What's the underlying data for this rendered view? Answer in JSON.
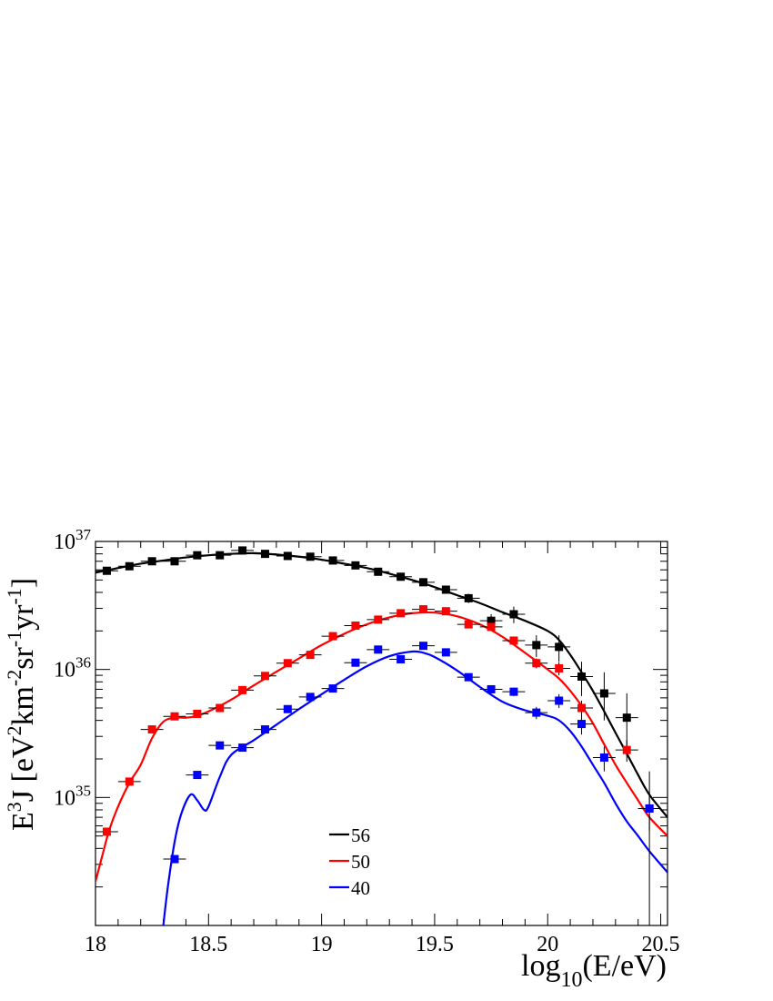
{
  "chart_data": {
    "type": "scatter",
    "title": "",
    "xlabel": {
      "base": "log",
      "sub": "10",
      "rest": "(E/eV)"
    },
    "ylabel": {
      "p1": "E",
      "s1": "3",
      "p2": "J [eV",
      "s2": "2",
      "p3": "km",
      "s3": "-2",
      "p4": "sr",
      "s4": "-1",
      "p5": "yr",
      "s5": "-1",
      "p6": "]"
    },
    "xlim": [
      18.0,
      20.53
    ],
    "ylim": [
      1e+34,
      1e+37
    ],
    "yscale": "log",
    "xticks": [
      {
        "value": 18.0,
        "label": "18"
      },
      {
        "value": 18.5,
        "label": "18.5"
      },
      {
        "value": 19.0,
        "label": "19"
      },
      {
        "value": 19.5,
        "label": "19.5"
      },
      {
        "value": 20.0,
        "label": "20"
      },
      {
        "value": 20.5,
        "label": "20.5"
      }
    ],
    "yticks": [
      {
        "value": 1e+35,
        "base": "10",
        "exp": "35"
      },
      {
        "value": 1e+36,
        "base": "10",
        "exp": "36"
      },
      {
        "value": 1e+37,
        "base": "10",
        "exp": "37"
      }
    ],
    "grid": false,
    "legend": {
      "position": "bottom-center",
      "entries": [
        "56",
        "50",
        "40"
      ]
    },
    "series": [
      {
        "name": "56",
        "color": "#000000",
        "points": [
          {
            "x": 18.05,
            "y": 5.9e+36,
            "elo": 5.6e+36,
            "ehi": 6.2e+36
          },
          {
            "x": 18.15,
            "y": 6.4e+36,
            "elo": 6.1e+36,
            "ehi": 6.7e+36
          },
          {
            "x": 18.25,
            "y": 7e+36,
            "elo": 6.7e+36,
            "ehi": 7.3e+36
          },
          {
            "x": 18.35,
            "y": 7e+36,
            "elo": 6.7e+36,
            "ehi": 7.3e+36
          },
          {
            "x": 18.45,
            "y": 7.8e+36,
            "elo": 7.5e+36,
            "ehi": 8.1e+36
          },
          {
            "x": 18.55,
            "y": 7.8e+36,
            "elo": 7.5e+36,
            "ehi": 8.1e+36
          },
          {
            "x": 18.65,
            "y": 8.5e+36,
            "elo": 8.2e+36,
            "ehi": 8.8e+36
          },
          {
            "x": 18.75,
            "y": 8e+36,
            "elo": 7.7e+36,
            "ehi": 8.3e+36
          },
          {
            "x": 18.85,
            "y": 7.7e+36,
            "elo": 7.4e+36,
            "ehi": 8e+36
          },
          {
            "x": 18.95,
            "y": 7.6e+36,
            "elo": 7.3e+36,
            "ehi": 7.9e+36
          },
          {
            "x": 19.05,
            "y": 7.1e+36,
            "elo": 6.8e+36,
            "ehi": 7.4e+36
          },
          {
            "x": 19.15,
            "y": 6.5e+36,
            "elo": 6.2e+36,
            "ehi": 6.8e+36
          },
          {
            "x": 19.25,
            "y": 5.8e+36,
            "elo": 5.5e+36,
            "ehi": 6.1e+36
          },
          {
            "x": 19.35,
            "y": 5.3e+36,
            "elo": 5e+36,
            "ehi": 5.6e+36
          },
          {
            "x": 19.45,
            "y": 4.8e+36,
            "elo": 4.5e+36,
            "ehi": 5.1e+36
          },
          {
            "x": 19.55,
            "y": 4.2e+36,
            "elo": 3.9e+36,
            "ehi": 4.5e+36
          },
          {
            "x": 19.65,
            "y": 3.6e+36,
            "elo": 3.3e+36,
            "ehi": 3.9e+36
          },
          {
            "x": 19.75,
            "y": 2.4e+36,
            "elo": 2.1e+36,
            "ehi": 2.7e+36
          },
          {
            "x": 19.85,
            "y": 2.7e+36,
            "elo": 2.3e+36,
            "ehi": 3.1e+36
          },
          {
            "x": 19.95,
            "y": 1.55e+36,
            "elo": 1.25e+36,
            "ehi": 1.85e+36
          },
          {
            "x": 20.05,
            "y": 1.5e+36,
            "elo": 1.15e+36,
            "ehi": 1.85e+36
          },
          {
            "x": 20.15,
            "y": 8.8e+35,
            "elo": 6.2e+35,
            "ehi": 1.15e+36
          },
          {
            "x": 20.25,
            "y": 6.5e+35,
            "elo": 4e+35,
            "ehi": 9.5e+35
          },
          {
            "x": 20.35,
            "y": 4.2e+35,
            "elo": 2.1e+35,
            "ehi": 6.5e+35
          },
          {
            "x": 20.45,
            "y": 8.2e+34,
            "elo": 1e+34,
            "ehi": 1.6e+35
          }
        ],
        "curve": [
          [
            18.0,
            5.7e+36
          ],
          [
            18.1,
            6.2e+36
          ],
          [
            18.2,
            6.7e+36
          ],
          [
            18.3,
            7.1e+36
          ],
          [
            18.4,
            7.5e+36
          ],
          [
            18.5,
            7.8e+36
          ],
          [
            18.6,
            8e+36
          ],
          [
            18.7,
            8.1e+36
          ],
          [
            18.8,
            7.9e+36
          ],
          [
            18.9,
            7.6e+36
          ],
          [
            19.0,
            7.2e+36
          ],
          [
            19.1,
            6.7e+36
          ],
          [
            19.2,
            6.2e+36
          ],
          [
            19.3,
            5.6e+36
          ],
          [
            19.4,
            5e+36
          ],
          [
            19.5,
            4.4e+36
          ],
          [
            19.6,
            3.8e+36
          ],
          [
            19.7,
            3.3e+36
          ],
          [
            19.8,
            2.8e+36
          ],
          [
            19.9,
            2.4e+36
          ],
          [
            20.0,
            2e+36
          ],
          [
            20.05,
            1.7e+36
          ],
          [
            20.1,
            1.3e+36
          ],
          [
            20.15,
            9.5e+35
          ],
          [
            20.2,
            6.8e+35
          ],
          [
            20.25,
            4.7e+35
          ],
          [
            20.3,
            3.2e+35
          ],
          [
            20.35,
            2.2e+35
          ],
          [
            20.4,
            1.5e+35
          ],
          [
            20.45,
            1.05e+35
          ],
          [
            20.53,
            7e+34
          ]
        ]
      },
      {
        "name": "50",
        "color": "#ff0000",
        "points": [
          {
            "x": 18.05,
            "y": 5.4e+34,
            "elo": 5.1e+34,
            "ehi": 5.7e+34
          },
          {
            "x": 18.15,
            "y": 1.33e+35,
            "elo": 1.28e+35,
            "ehi": 1.38e+35
          },
          {
            "x": 18.25,
            "y": 3.4e+35,
            "elo": 3.3e+35,
            "ehi": 3.5e+35
          },
          {
            "x": 18.35,
            "y": 4.3e+35,
            "elo": 4.2e+35,
            "ehi": 4.4e+35
          },
          {
            "x": 18.45,
            "y": 4.5e+35,
            "elo": 4.4e+35,
            "ehi": 4.6e+35
          },
          {
            "x": 18.55,
            "y": 5e+35,
            "elo": 4.9e+35,
            "ehi": 5.1e+35
          },
          {
            "x": 18.65,
            "y": 6.9e+35,
            "elo": 6.7e+35,
            "ehi": 7.1e+35
          },
          {
            "x": 18.75,
            "y": 8.9e+35,
            "elo": 8.6e+35,
            "ehi": 9.2e+35
          },
          {
            "x": 18.85,
            "y": 1.12e+36,
            "elo": 1.08e+36,
            "ehi": 1.16e+36
          },
          {
            "x": 18.95,
            "y": 1.3e+36,
            "elo": 1.25e+36,
            "ehi": 1.35e+36
          },
          {
            "x": 19.05,
            "y": 1.82e+36,
            "elo": 1.76e+36,
            "ehi": 1.88e+36
          },
          {
            "x": 19.15,
            "y": 2.2e+36,
            "elo": 2.13e+36,
            "ehi": 2.27e+36
          },
          {
            "x": 19.25,
            "y": 2.45e+36,
            "elo": 2.37e+36,
            "ehi": 2.53e+36
          },
          {
            "x": 19.35,
            "y": 2.75e+36,
            "elo": 2.66e+36,
            "ehi": 2.84e+36
          },
          {
            "x": 19.45,
            "y": 2.95e+36,
            "elo": 2.85e+36,
            "ehi": 3.05e+36
          },
          {
            "x": 19.55,
            "y": 2.85e+36,
            "elo": 2.75e+36,
            "ehi": 2.95e+36
          },
          {
            "x": 19.65,
            "y": 2.25e+36,
            "elo": 2.15e+36,
            "ehi": 2.35e+36
          },
          {
            "x": 19.75,
            "y": 2.15e+36,
            "elo": 2.05e+36,
            "ehi": 2.25e+36
          },
          {
            "x": 19.85,
            "y": 1.68e+36,
            "elo": 1.58e+36,
            "ehi": 1.78e+36
          },
          {
            "x": 19.95,
            "y": 1.12e+36,
            "elo": 1.02e+36,
            "ehi": 1.22e+36
          },
          {
            "x": 20.05,
            "y": 1.02e+36,
            "elo": 9e+35,
            "ehi": 1.14e+36
          },
          {
            "x": 20.15,
            "y": 5e+35,
            "elo": 4.3e+35,
            "ehi": 5.7e+35
          },
          {
            "x": 20.35,
            "y": 2.35e+35,
            "elo": 1.9e+35,
            "ehi": 2.8e+35
          }
        ],
        "curve": [
          [
            18.0,
            2.2e+34
          ],
          [
            18.03,
            3.5e+34
          ],
          [
            18.06,
            5.5e+34
          ],
          [
            18.1,
            8.5e+34
          ],
          [
            18.15,
            1.3e+35
          ],
          [
            18.2,
            1.8e+35
          ],
          [
            18.25,
            2.9e+35
          ],
          [
            18.3,
            3.9e+35
          ],
          [
            18.35,
            4.2e+35
          ],
          [
            18.4,
            4.2e+35
          ],
          [
            18.45,
            4.35e+35
          ],
          [
            18.5,
            4.7e+35
          ],
          [
            18.6,
            5.8e+35
          ],
          [
            18.7,
            7.5e+35
          ],
          [
            18.8,
            9.6e+35
          ],
          [
            18.9,
            1.22e+36
          ],
          [
            19.0,
            1.55e+36
          ],
          [
            19.1,
            1.9e+36
          ],
          [
            19.2,
            2.25e+36
          ],
          [
            19.3,
            2.55e+36
          ],
          [
            19.4,
            2.75e+36
          ],
          [
            19.5,
            2.78e+36
          ],
          [
            19.6,
            2.6e+36
          ],
          [
            19.7,
            2.25e+36
          ],
          [
            19.8,
            1.8e+36
          ],
          [
            19.9,
            1.35e+36
          ],
          [
            20.0,
            1e+36
          ],
          [
            20.05,
            8.5e+35
          ],
          [
            20.1,
            6.8e+35
          ],
          [
            20.15,
            5.2e+35
          ],
          [
            20.2,
            3.8e+35
          ],
          [
            20.25,
            2.6e+35
          ],
          [
            20.3,
            1.8e+35
          ],
          [
            20.35,
            1.3e+35
          ],
          [
            20.4,
            9.5e+34
          ],
          [
            20.45,
            7e+34
          ],
          [
            20.53,
            5e+34
          ]
        ]
      },
      {
        "name": "40",
        "color": "#0000ff",
        "points": [
          {
            "x": 18.35,
            "y": 3.3e+34,
            "elo": 3.1e+34,
            "ehi": 3.5e+34
          },
          {
            "x": 18.45,
            "y": 1.5e+35,
            "elo": 1.45e+35,
            "ehi": 1.55e+35
          },
          {
            "x": 18.55,
            "y": 2.55e+35,
            "elo": 2.48e+35,
            "ehi": 2.62e+35
          },
          {
            "x": 18.65,
            "y": 2.45e+35,
            "elo": 2.38e+35,
            "ehi": 2.52e+35
          },
          {
            "x": 18.75,
            "y": 3.4e+35,
            "elo": 3.3e+35,
            "ehi": 3.5e+35
          },
          {
            "x": 18.85,
            "y": 4.9e+35,
            "elo": 4.75e+35,
            "ehi": 5.05e+35
          },
          {
            "x": 18.95,
            "y": 6.1e+35,
            "elo": 5.9e+35,
            "ehi": 6.3e+35
          },
          {
            "x": 19.05,
            "y": 7.1e+35,
            "elo": 6.85e+35,
            "ehi": 7.35e+35
          },
          {
            "x": 19.15,
            "y": 1.13e+36,
            "elo": 1.09e+36,
            "ehi": 1.17e+36
          },
          {
            "x": 19.25,
            "y": 1.43e+36,
            "elo": 1.38e+36,
            "ehi": 1.48e+36
          },
          {
            "x": 19.35,
            "y": 1.2e+36,
            "elo": 1.15e+36,
            "ehi": 1.25e+36
          },
          {
            "x": 19.45,
            "y": 1.53e+36,
            "elo": 1.47e+36,
            "ehi": 1.59e+36
          },
          {
            "x": 19.55,
            "y": 1.36e+36,
            "elo": 1.3e+36,
            "ehi": 1.42e+36
          },
          {
            "x": 19.65,
            "y": 8.7e+35,
            "elo": 8.3e+35,
            "ehi": 9.1e+35
          },
          {
            "x": 19.75,
            "y": 7e+35,
            "elo": 6.6e+35,
            "ehi": 7.4e+35
          },
          {
            "x": 19.85,
            "y": 6.7e+35,
            "elo": 6.2e+35,
            "ehi": 7.2e+35
          },
          {
            "x": 19.95,
            "y": 4.6e+35,
            "elo": 4.1e+35,
            "ehi": 5.1e+35
          },
          {
            "x": 20.05,
            "y": 5.7e+35,
            "elo": 5e+35,
            "ehi": 6.4e+35
          },
          {
            "x": 20.15,
            "y": 3.75e+35,
            "elo": 3.1e+35,
            "ehi": 4.4e+35
          },
          {
            "x": 20.25,
            "y": 2.05e+35,
            "elo": 1.6e+35,
            "ehi": 2.5e+35
          },
          {
            "x": 20.45,
            "y": 8.2e+34,
            "elo": 5.5e+34,
            "ehi": 1.1e+35
          }
        ],
        "curve": [
          [
            18.3,
            1e+34
          ],
          [
            18.32,
            2e+34
          ],
          [
            18.35,
            4.5e+34
          ],
          [
            18.38,
            7.5e+34
          ],
          [
            18.42,
            1.05e+35
          ],
          [
            18.45,
            9.5e+34
          ],
          [
            18.48,
            8e+34
          ],
          [
            18.5,
            8.5e+34
          ],
          [
            18.55,
            1.45e+35
          ],
          [
            18.6,
            2.15e+35
          ],
          [
            18.7,
            2.8e+35
          ],
          [
            18.8,
            3.7e+35
          ],
          [
            18.9,
            4.9e+35
          ],
          [
            19.0,
            6.4e+35
          ],
          [
            19.1,
            8.3e+35
          ],
          [
            19.2,
            1.06e+36
          ],
          [
            19.3,
            1.27e+36
          ],
          [
            19.4,
            1.38e+36
          ],
          [
            19.45,
            1.35e+36
          ],
          [
            19.5,
            1.25e+36
          ],
          [
            19.6,
            9.8e+35
          ],
          [
            19.7,
            7.3e+35
          ],
          [
            19.8,
            5.6e+35
          ],
          [
            19.9,
            4.8e+35
          ],
          [
            20.0,
            4.35e+35
          ],
          [
            20.05,
            4e+35
          ],
          [
            20.1,
            3.3e+35
          ],
          [
            20.15,
            2.5e+35
          ],
          [
            20.2,
            1.8e+35
          ],
          [
            20.25,
            1.3e+35
          ],
          [
            20.3,
            9e+34
          ],
          [
            20.35,
            6.5e+34
          ],
          [
            20.4,
            5e+34
          ],
          [
            20.45,
            3.8e+34
          ],
          [
            20.53,
            2.6e+34
          ]
        ]
      }
    ]
  }
}
